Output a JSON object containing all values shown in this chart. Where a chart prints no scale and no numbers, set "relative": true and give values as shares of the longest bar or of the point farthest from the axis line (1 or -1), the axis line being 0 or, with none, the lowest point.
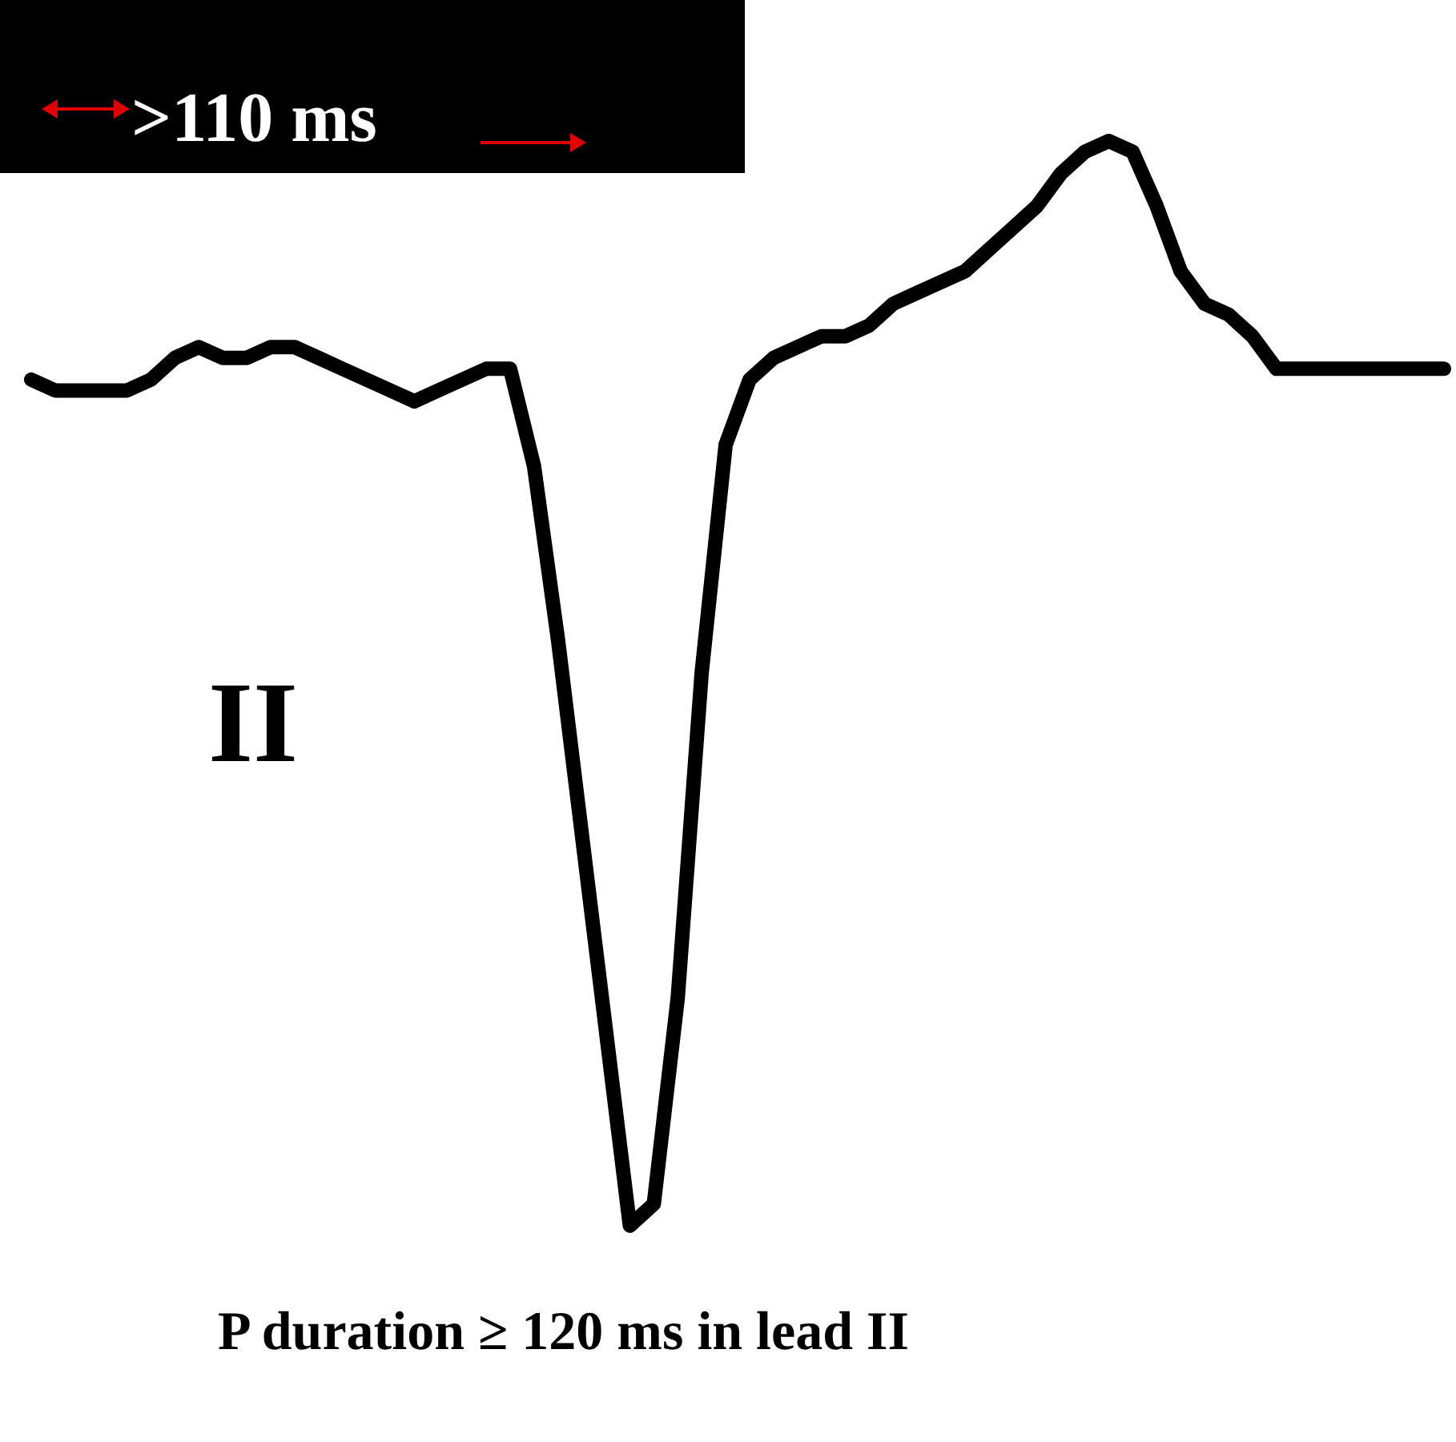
{
  "chart_data": {
    "type": "line",
    "relative": true,
    "line_style": "solid",
    "annotations": [
      ">110 ms",
      "II",
      "P duration ≥ 120 ms in lead II"
    ],
    "categories": [
      null,
      null,
      null,
      null,
      null,
      null,
      null,
      null,
      null,
      null,
      null,
      null,
      null,
      null,
      null,
      null,
      null,
      null,
      null,
      null,
      null,
      null,
      null,
      null,
      null,
      null,
      null,
      null,
      null,
      null,
      null,
      null,
      null,
      null,
      null,
      null,
      null,
      null,
      null,
      null,
      null,
      null,
      null,
      null,
      null,
      null,
      null,
      null,
      null,
      null,
      null,
      null,
      null,
      null,
      null,
      null,
      null,
      null,
      null,
      null
    ],
    "series": [
      {
        "color": "#000000",
        "values": [
          0.78,
          0.77,
          0.77,
          0.77,
          0.77,
          0.78,
          0.8,
          0.81,
          0.8,
          0.8,
          0.81,
          0.81,
          0.8,
          0.79,
          0.78,
          0.77,
          0.76,
          0.77,
          0.78,
          0.79,
          0.79,
          0.7,
          0.54,
          0.36,
          0.18,
          0,
          0.02,
          0.21,
          0.51,
          0.72,
          0.78,
          0.8,
          0.81,
          0.82,
          0.82,
          0.83,
          0.85,
          0.86,
          0.87,
          0.88,
          0.9,
          0.92,
          0.94,
          0.97,
          0.99,
          1,
          0.99,
          0.94,
          0.88,
          0.85,
          0.84,
          0.82,
          0.79,
          0.79,
          0.79,
          0.79,
          0.79,
          0.79,
          0.79,
          0.79
        ]
      }
    ]
  }
}
